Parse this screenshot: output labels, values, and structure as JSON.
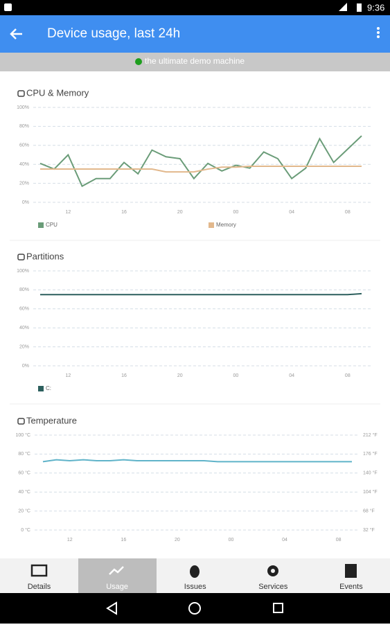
{
  "status_bar": {
    "time": "9:36"
  },
  "app_bar": {
    "title": "Device usage, last 24h"
  },
  "banner": {
    "text": "the ultimate demo machine"
  },
  "chart_data": [
    {
      "type": "line",
      "title": "CPU & Memory",
      "categories": [
        null,
        null,
        "12",
        null,
        null,
        null,
        "16",
        null,
        null,
        null,
        "20",
        null,
        null,
        null,
        "00",
        null,
        null,
        null,
        "04",
        null,
        null,
        null,
        "08",
        null
      ],
      "ylim": [
        0,
        100
      ],
      "yticks": [
        {
          "value": 0,
          "label": "0%"
        },
        {
          "value": 20,
          "label": "20%"
        },
        {
          "value": 40,
          "label": "40%"
        },
        {
          "value": 60,
          "label": "60%"
        },
        {
          "value": 80,
          "label": "80%"
        },
        {
          "value": 100,
          "label": "100%"
        }
      ],
      "grid": true,
      "series": [
        {
          "name": "CPU",
          "color": "#6a9c78",
          "values": [
            41,
            35,
            50,
            17,
            25,
            25,
            42,
            30,
            55,
            48,
            46,
            25,
            41,
            33,
            39,
            36,
            53,
            46,
            25,
            36,
            67,
            42,
            56,
            70
          ]
        },
        {
          "name": "Memory",
          "color": "#e2b88c",
          "values": [
            35,
            35,
            35,
            35,
            35,
            35,
            35,
            35,
            35,
            32,
            32,
            32,
            35,
            37,
            37,
            38,
            38,
            38,
            38,
            38,
            38,
            38,
            38,
            38
          ]
        }
      ]
    },
    {
      "type": "line",
      "title": "Partitions",
      "categories": [
        null,
        null,
        "12",
        null,
        null,
        null,
        "16",
        null,
        null,
        null,
        "20",
        null,
        null,
        null,
        "00",
        null,
        null,
        null,
        "04",
        null,
        null,
        null,
        "08",
        null
      ],
      "ylim": [
        0,
        100
      ],
      "yticks": [
        {
          "value": 0,
          "label": "0%"
        },
        {
          "value": 20,
          "label": "20%"
        },
        {
          "value": 40,
          "label": "40%"
        },
        {
          "value": 60,
          "label": "60%"
        },
        {
          "value": 80,
          "label": "80%"
        },
        {
          "value": 100,
          "label": "100%"
        }
      ],
      "grid": true,
      "series": [
        {
          "name": "C:",
          "color": "#2c5f5d",
          "values": [
            75,
            75,
            75,
            75,
            75,
            75,
            75,
            75,
            75,
            75,
            75,
            75,
            75,
            75,
            75,
            75,
            75,
            75,
            75,
            75,
            75,
            75,
            75,
            76
          ]
        }
      ]
    },
    {
      "type": "line",
      "title": "Temperature",
      "categories": [
        null,
        null,
        "12",
        null,
        null,
        null,
        "16",
        null,
        null,
        null,
        "20",
        null,
        null,
        null,
        "00",
        null,
        null,
        null,
        "04",
        null,
        null,
        null,
        "08",
        null
      ],
      "ylim": [
        0,
        100
      ],
      "yticks": [
        {
          "value": 0,
          "label": "0 °C"
        },
        {
          "value": 20,
          "label": "20 °C"
        },
        {
          "value": 40,
          "label": "40 °C"
        },
        {
          "value": 60,
          "label": "60 °C"
        },
        {
          "value": 80,
          "label": "80 °C"
        },
        {
          "value": 100,
          "label": "100 °C"
        }
      ],
      "y2lim": [
        32,
        212
      ],
      "y2ticks": [
        {
          "value": 32,
          "label": "32 °F"
        },
        {
          "value": 68,
          "label": "68 °F"
        },
        {
          "value": 104,
          "label": "104 °F"
        },
        {
          "value": 140,
          "label": "140 °F"
        },
        {
          "value": 176,
          "label": "176 °F"
        },
        {
          "value": 212,
          "label": "212 °F"
        }
      ],
      "grid": true,
      "series": [
        {
          "color": "#5fb3c9",
          "values": [
            72,
            74,
            73,
            74,
            73,
            73,
            74,
            73,
            73,
            73,
            73,
            73,
            73,
            72,
            72,
            72,
            72,
            72,
            72,
            72,
            72,
            72,
            72,
            72
          ]
        }
      ]
    }
  ],
  "tabs": [
    "Details",
    "Usage",
    "Issues",
    "Services",
    "Events"
  ]
}
